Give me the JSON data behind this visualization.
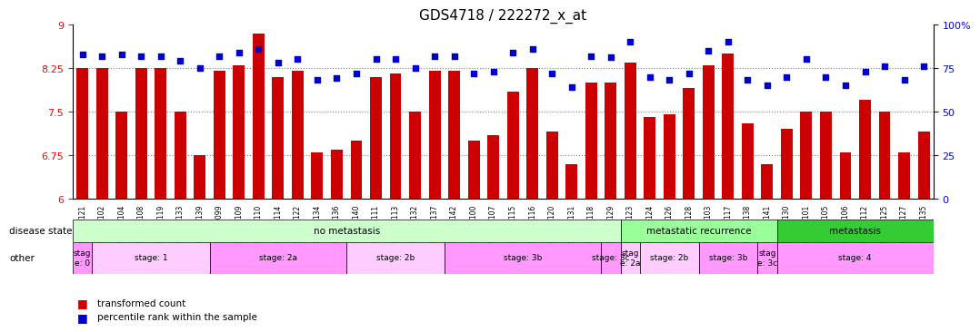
{
  "title": "GDS4718 / 222272_x_at",
  "samples": [
    "GSM549121",
    "GSM549102",
    "GSM549104",
    "GSM549108",
    "GSM549119",
    "GSM549133",
    "GSM549139",
    "GSM549099",
    "GSM549109",
    "GSM549110",
    "GSM549114",
    "GSM549122",
    "GSM549134",
    "GSM549136",
    "GSM549140",
    "GSM549111",
    "GSM549113",
    "GSM549132",
    "GSM549137",
    "GSM549142",
    "GSM549100",
    "GSM549107",
    "GSM549115",
    "GSM549116",
    "GSM549120",
    "GSM549131",
    "GSM549118",
    "GSM549129",
    "GSM549123",
    "GSM549124",
    "GSM549126",
    "GSM549128",
    "GSM549103",
    "GSM549117",
    "GSM549138",
    "GSM549141",
    "GSM549130",
    "GSM549101",
    "GSM549105",
    "GSM549106",
    "GSM549112",
    "GSM549125",
    "GSM549127",
    "GSM549135"
  ],
  "bar_values": [
    8.25,
    8.25,
    7.5,
    8.25,
    8.25,
    7.5,
    6.75,
    8.2,
    8.3,
    8.85,
    8.1,
    8.2,
    6.8,
    6.85,
    7.0,
    8.1,
    8.15,
    7.5,
    8.2,
    8.2,
    7.0,
    7.1,
    7.85,
    8.25,
    7.15,
    6.6,
    8.0,
    8.0,
    8.35,
    7.4,
    7.45,
    7.9,
    8.3,
    8.5,
    7.3,
    6.6,
    7.2,
    7.5,
    7.5,
    6.8,
    7.7,
    7.5,
    6.8,
    7.15
  ],
  "percentile_values": [
    83,
    82,
    83,
    82,
    82,
    79,
    75,
    82,
    84,
    86,
    78,
    80,
    68,
    69,
    72,
    80,
    80,
    75,
    82,
    82,
    72,
    73,
    84,
    86,
    72,
    64,
    82,
    81,
    90,
    70,
    68,
    72,
    85,
    90,
    68,
    65,
    70,
    80,
    70,
    65,
    73,
    76,
    68,
    76
  ],
  "ylim_left": [
    6,
    9
  ],
  "ylim_right": [
    0,
    100
  ],
  "yticks_left": [
    6,
    6.75,
    7.5,
    8.25,
    9
  ],
  "yticks_right": [
    0,
    25,
    50,
    75,
    100
  ],
  "ytick_labels_right": [
    "0",
    "25",
    "50",
    "75",
    "100%"
  ],
  "bar_color": "#cc0000",
  "dot_color": "#0000cc",
  "background_color": "#ffffff",
  "disease_state_groups": [
    {
      "label": "no metastasis",
      "start": 0,
      "end": 28,
      "color": "#ccffcc"
    },
    {
      "label": "metastatic recurrence",
      "start": 28,
      "end": 36,
      "color": "#99ff99"
    },
    {
      "label": "metastasis",
      "start": 36,
      "end": 44,
      "color": "#33cc33"
    }
  ],
  "stage_groups": [
    {
      "label": "stag\ne: 0",
      "start": 0,
      "end": 1,
      "color": "#ff99ff"
    },
    {
      "label": "stage: 1",
      "start": 1,
      "end": 7,
      "color": "#ffccff"
    },
    {
      "label": "stage: 2a",
      "start": 7,
      "end": 14,
      "color": "#ff99ff"
    },
    {
      "label": "stage: 2b",
      "start": 14,
      "end": 19,
      "color": "#ffccff"
    },
    {
      "label": "stage: 3b",
      "start": 19,
      "end": 27,
      "color": "#ff99ff"
    },
    {
      "label": "stage: 3c",
      "start": 27,
      "end": 28,
      "color": "#ff99ff"
    },
    {
      "label": "stag\ne: 2a",
      "start": 28,
      "end": 29,
      "color": "#ffccff"
    },
    {
      "label": "stage: 2b",
      "start": 29,
      "end": 32,
      "color": "#ffccff"
    },
    {
      "label": "stage: 3b",
      "start": 32,
      "end": 35,
      "color": "#ff99ff"
    },
    {
      "label": "stag\ne: 3c",
      "start": 35,
      "end": 36,
      "color": "#ff99ff"
    },
    {
      "label": "stage: 4",
      "start": 36,
      "end": 44,
      "color": "#ff99ff"
    }
  ]
}
